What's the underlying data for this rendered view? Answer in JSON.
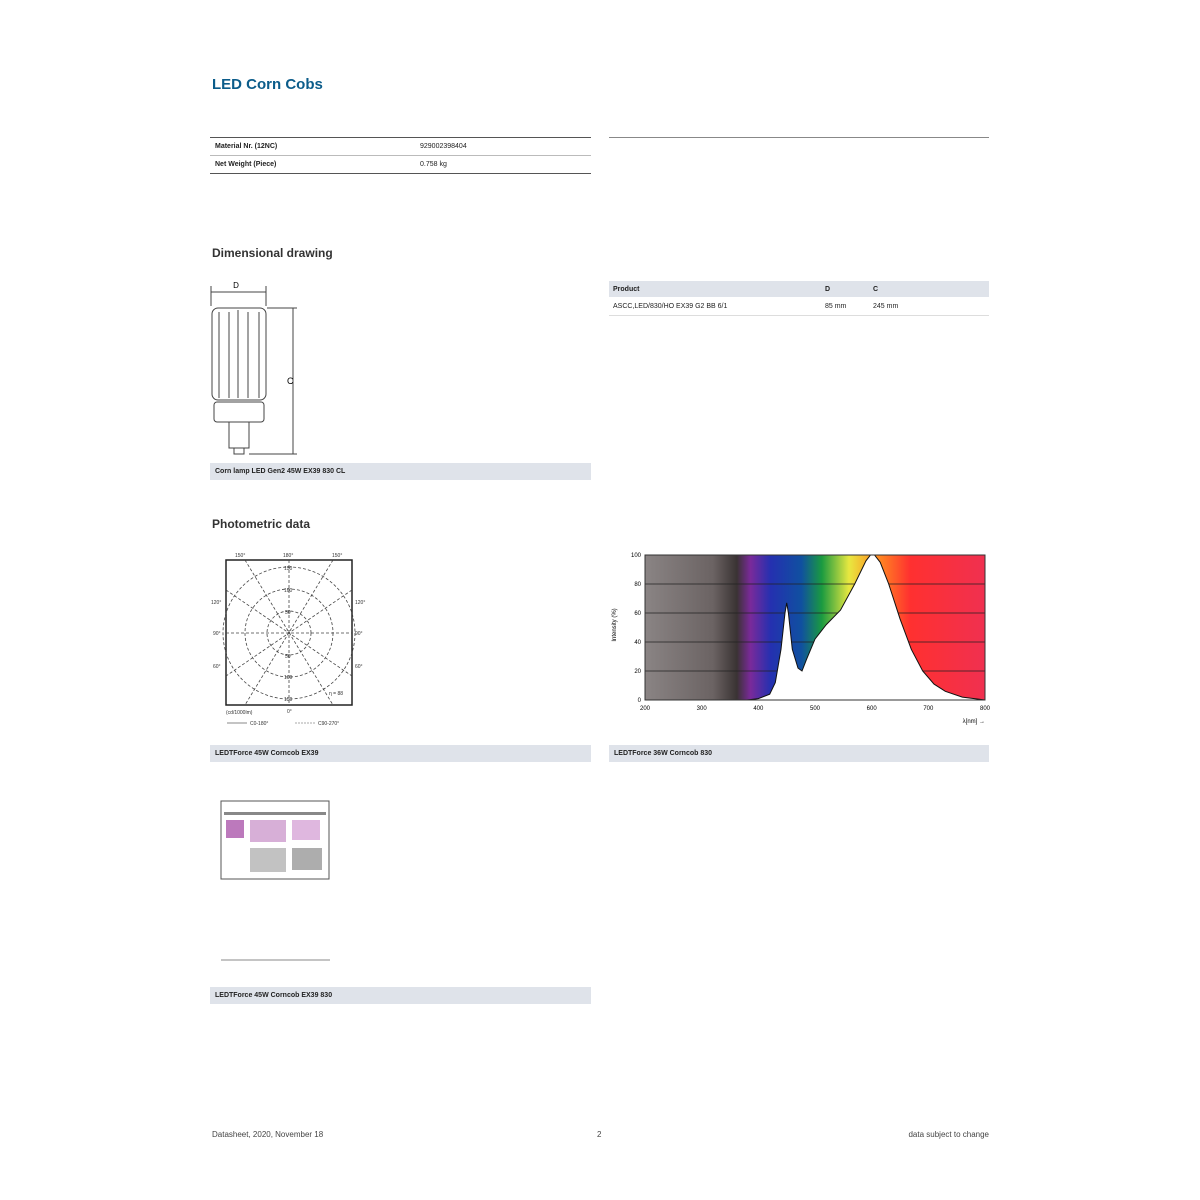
{
  "header": {
    "title": "LED Corn Cobs"
  },
  "specs": [
    {
      "label": "Material Nr. (12NC)",
      "value": "929002398404"
    },
    {
      "label": "Net Weight (Piece)",
      "value": "0.758 kg"
    }
  ],
  "dimensional": {
    "heading": "Dimensional drawing",
    "drawing_labels": {
      "d": "D",
      "c": "C"
    },
    "caption": "Corn lamp LED Gen2 45W EX39 830 CL",
    "table": {
      "headers": [
        "Product",
        "D",
        "C"
      ],
      "rows": [
        [
          "ASCC,LED/830/HO EX39 G2 BB 6/1",
          "85 mm",
          "245 mm"
        ]
      ]
    }
  },
  "photometric": {
    "heading": "Photometric data",
    "polar": {
      "angle_labels_top": [
        "150°",
        "180°",
        "150°"
      ],
      "angle_labels_left": [
        "120°",
        "90°",
        "60°"
      ],
      "angle_labels_right": [
        "120°",
        "90°",
        "60°"
      ],
      "bottom_angle": "0°",
      "ring_labels": [
        "150",
        "100",
        "50",
        "50",
        "100",
        "150"
      ],
      "unit": "(cd/1000lm)",
      "eta": "η = 88",
      "legend": [
        "C0-180°",
        "C90-270°"
      ],
      "caption": "LEDTForce 45W Corncob EX39"
    },
    "spectrum_caption": "LEDTForce 36W Corncob 830"
  },
  "chart_data": {
    "type": "area",
    "ylabel": "Intensity (%)",
    "xlabel": "λ[nm] →",
    "xlim": [
      200,
      800
    ],
    "ylim": [
      0,
      100
    ],
    "xticks": [
      200,
      300,
      400,
      500,
      600,
      700,
      800
    ],
    "yticks": [
      0,
      20,
      40,
      60,
      80,
      100
    ],
    "grid": true,
    "background": "visible spectrum gradient",
    "x": [
      200,
      380,
      400,
      420,
      430,
      440,
      447,
      450,
      453,
      460,
      470,
      477,
      485,
      500,
      520,
      545,
      570,
      590,
      598,
      605,
      615,
      630,
      650,
      670,
      690,
      710,
      730,
      760,
      790,
      800
    ],
    "y": [
      0,
      0,
      1,
      4,
      12,
      35,
      60,
      67,
      60,
      35,
      22,
      20,
      28,
      42,
      52,
      62,
      80,
      96,
      100,
      100,
      95,
      80,
      56,
      35,
      20,
      11,
      6,
      2,
      0.5,
      0
    ]
  },
  "thumbnail": {
    "caption": "LEDTForce 45W Corncob EX39 830"
  },
  "footer": {
    "left": "Datasheet, 2020, November 18",
    "center": "2",
    "right": "data subject to change"
  }
}
